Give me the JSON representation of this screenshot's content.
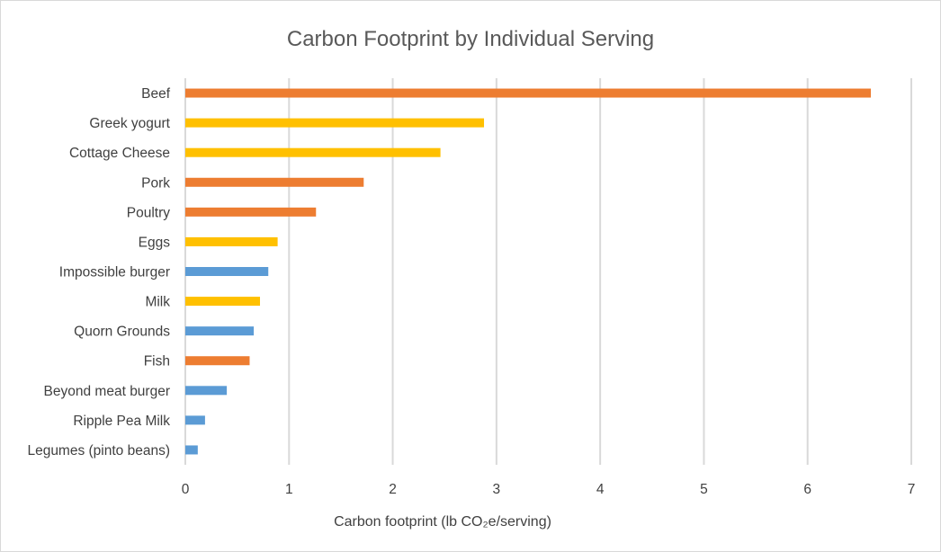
{
  "chart_data": {
    "type": "bar",
    "orientation": "horizontal",
    "title": "Carbon Footprint by Individual Serving",
    "xlabel": "Carbon footprint (lb CO₂e/serving)",
    "ylabel": "",
    "xlim": [
      0,
      7
    ],
    "x_ticks": [
      "0",
      "1",
      "2",
      "3",
      "4",
      "5",
      "6",
      "7"
    ],
    "grid": true,
    "legend": "none",
    "colors": {
      "meat": "#ed7d31",
      "dairy": "#ffc000",
      "plant": "#5b9bd5"
    },
    "bars": [
      {
        "category": "Beef",
        "value": 6.61,
        "group": "meat"
      },
      {
        "category": "Greek yogurt",
        "value": 2.88,
        "group": "dairy"
      },
      {
        "category": "Cottage Cheese",
        "value": 2.46,
        "group": "dairy"
      },
      {
        "category": "Pork",
        "value": 1.72,
        "group": "meat"
      },
      {
        "category": "Poultry",
        "value": 1.26,
        "group": "meat"
      },
      {
        "category": "Eggs",
        "value": 0.89,
        "group": "dairy"
      },
      {
        "category": "Impossible burger",
        "value": 0.8,
        "group": "plant"
      },
      {
        "category": "Milk",
        "value": 0.72,
        "group": "dairy"
      },
      {
        "category": "Quorn Grounds",
        "value": 0.66,
        "group": "plant"
      },
      {
        "category": "Fish",
        "value": 0.62,
        "group": "meat"
      },
      {
        "category": "Beyond meat burger",
        "value": 0.4,
        "group": "plant"
      },
      {
        "category": "Ripple Pea Milk",
        "value": 0.19,
        "group": "plant"
      },
      {
        "category": "Legumes (pinto beans)",
        "value": 0.12,
        "group": "plant"
      }
    ]
  }
}
